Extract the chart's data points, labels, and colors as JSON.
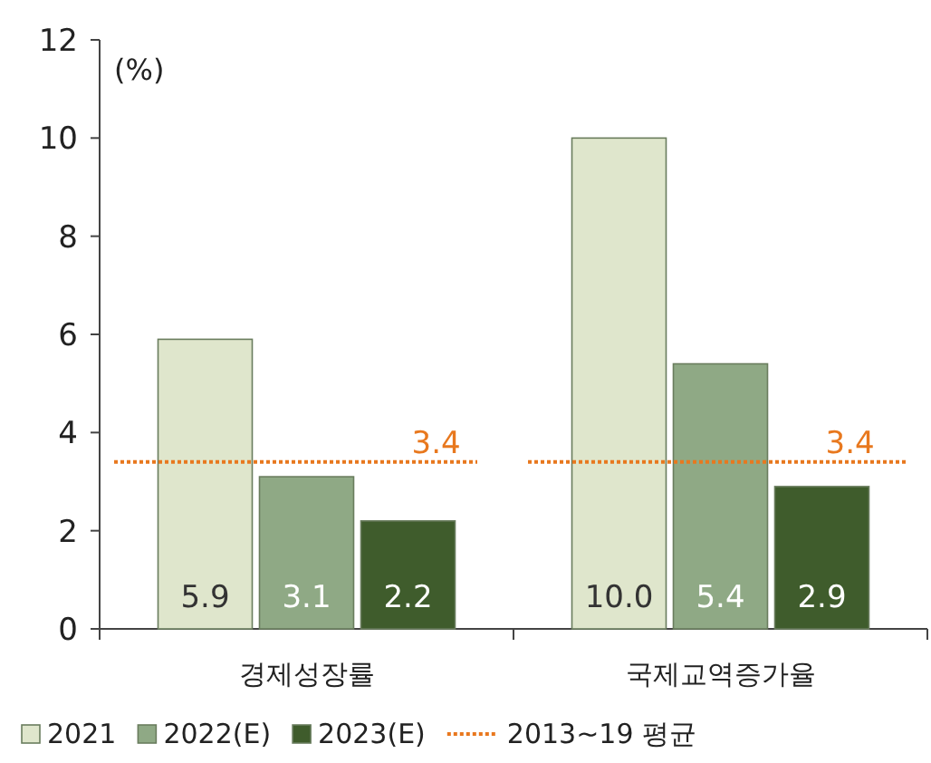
{
  "chart_data": {
    "type": "bar",
    "ylabel": "(%)",
    "categories": [
      "경제성장률",
      "국제교역증가율"
    ],
    "series": [
      {
        "name": "2021",
        "color": "#dfe6cc",
        "values": [
          5.9,
          10.0
        ],
        "value_labels": [
          "5.9",
          "10.0"
        ]
      },
      {
        "name": "2022(E)",
        "color": "#8fa985",
        "values": [
          3.1,
          5.4
        ],
        "value_labels": [
          "3.1",
          "5.4"
        ]
      },
      {
        "name": "2023(E)",
        "color": "#3f5c2c",
        "values": [
          2.2,
          2.9
        ],
        "value_labels": [
          "2.2",
          "2.9"
        ]
      }
    ],
    "ref_lines": [
      {
        "axis": "y",
        "value": 3.4,
        "label": "2013~19 평균",
        "color": "#e8781e",
        "line_style": "dotted"
      }
    ],
    "annotations": [
      "3.4",
      "3.4"
    ],
    "ylim": [
      0,
      12
    ],
    "yticks": [
      0,
      2,
      4,
      6,
      8,
      10,
      12
    ],
    "grid": false,
    "legend": "bottom"
  }
}
